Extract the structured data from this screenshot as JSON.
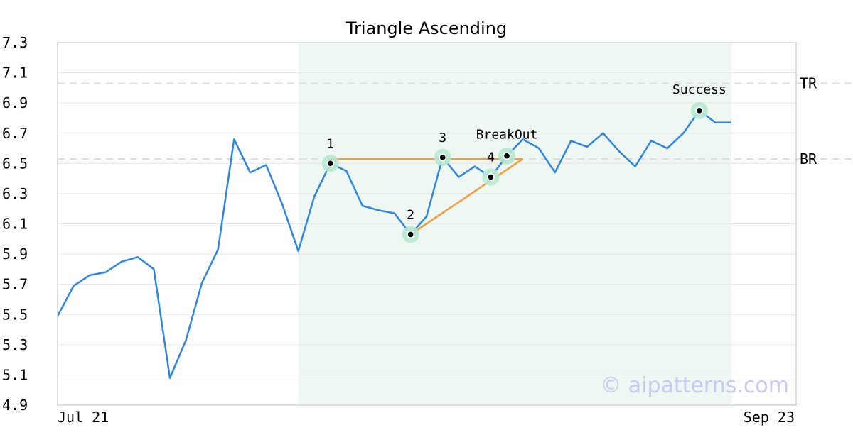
{
  "chart_data": {
    "type": "line",
    "title": "Triangle Ascending",
    "y_ticks": [
      "7.3",
      "7.1",
      "6.9",
      "6.7",
      "6.5",
      "6.3",
      "6.1",
      "5.9",
      "5.7",
      "5.5",
      "5.3",
      "5.1",
      "4.9"
    ],
    "ylim": [
      4.9,
      7.3
    ],
    "x_labels": [
      "Jul 21",
      "Sep 23"
    ],
    "grid": "horizontal",
    "series": [
      {
        "color": "#2e86de",
        "values": [
          5.49,
          5.69,
          5.76,
          5.78,
          5.85,
          5.88,
          5.8,
          5.08,
          5.33,
          5.71,
          5.93,
          6.66,
          6.44,
          6.49,
          6.23,
          5.92,
          6.28,
          6.5,
          6.45,
          6.22,
          6.19,
          6.17,
          6.03,
          6.15,
          6.54,
          6.41,
          6.48,
          6.41,
          6.55,
          6.66,
          6.6,
          6.44,
          6.65,
          6.61,
          6.7,
          6.58,
          6.48,
          6.65,
          6.6,
          6.7,
          6.85,
          6.77,
          6.77
        ]
      }
    ],
    "highlight_region": {
      "from_index": 15,
      "to_index": 42,
      "color": "#eef7f2"
    },
    "reference_lines": [
      {
        "label": "TR",
        "value": 7.03
      },
      {
        "label": "BR",
        "value": 6.53
      }
    ],
    "pattern_points": [
      {
        "label": "1",
        "index": 17,
        "value": 6.5
      },
      {
        "label": "2",
        "index": 22,
        "value": 6.03
      },
      {
        "label": "3",
        "index": 24,
        "value": 6.54
      },
      {
        "label": "4",
        "index": 27,
        "value": 6.41
      },
      {
        "label": "BreakOut",
        "index": 28,
        "value": 6.55
      },
      {
        "label": "Success",
        "index": 40,
        "value": 6.85
      }
    ],
    "triangle": {
      "color": "#f39c3d",
      "upper": [
        {
          "index": 17,
          "value": 6.53
        },
        {
          "index": 29,
          "value": 6.53
        }
      ],
      "lower": [
        {
          "index": 22,
          "value": 6.03
        },
        {
          "index": 29,
          "value": 6.53
        }
      ]
    },
    "watermark": "© aipatterns.com"
  }
}
